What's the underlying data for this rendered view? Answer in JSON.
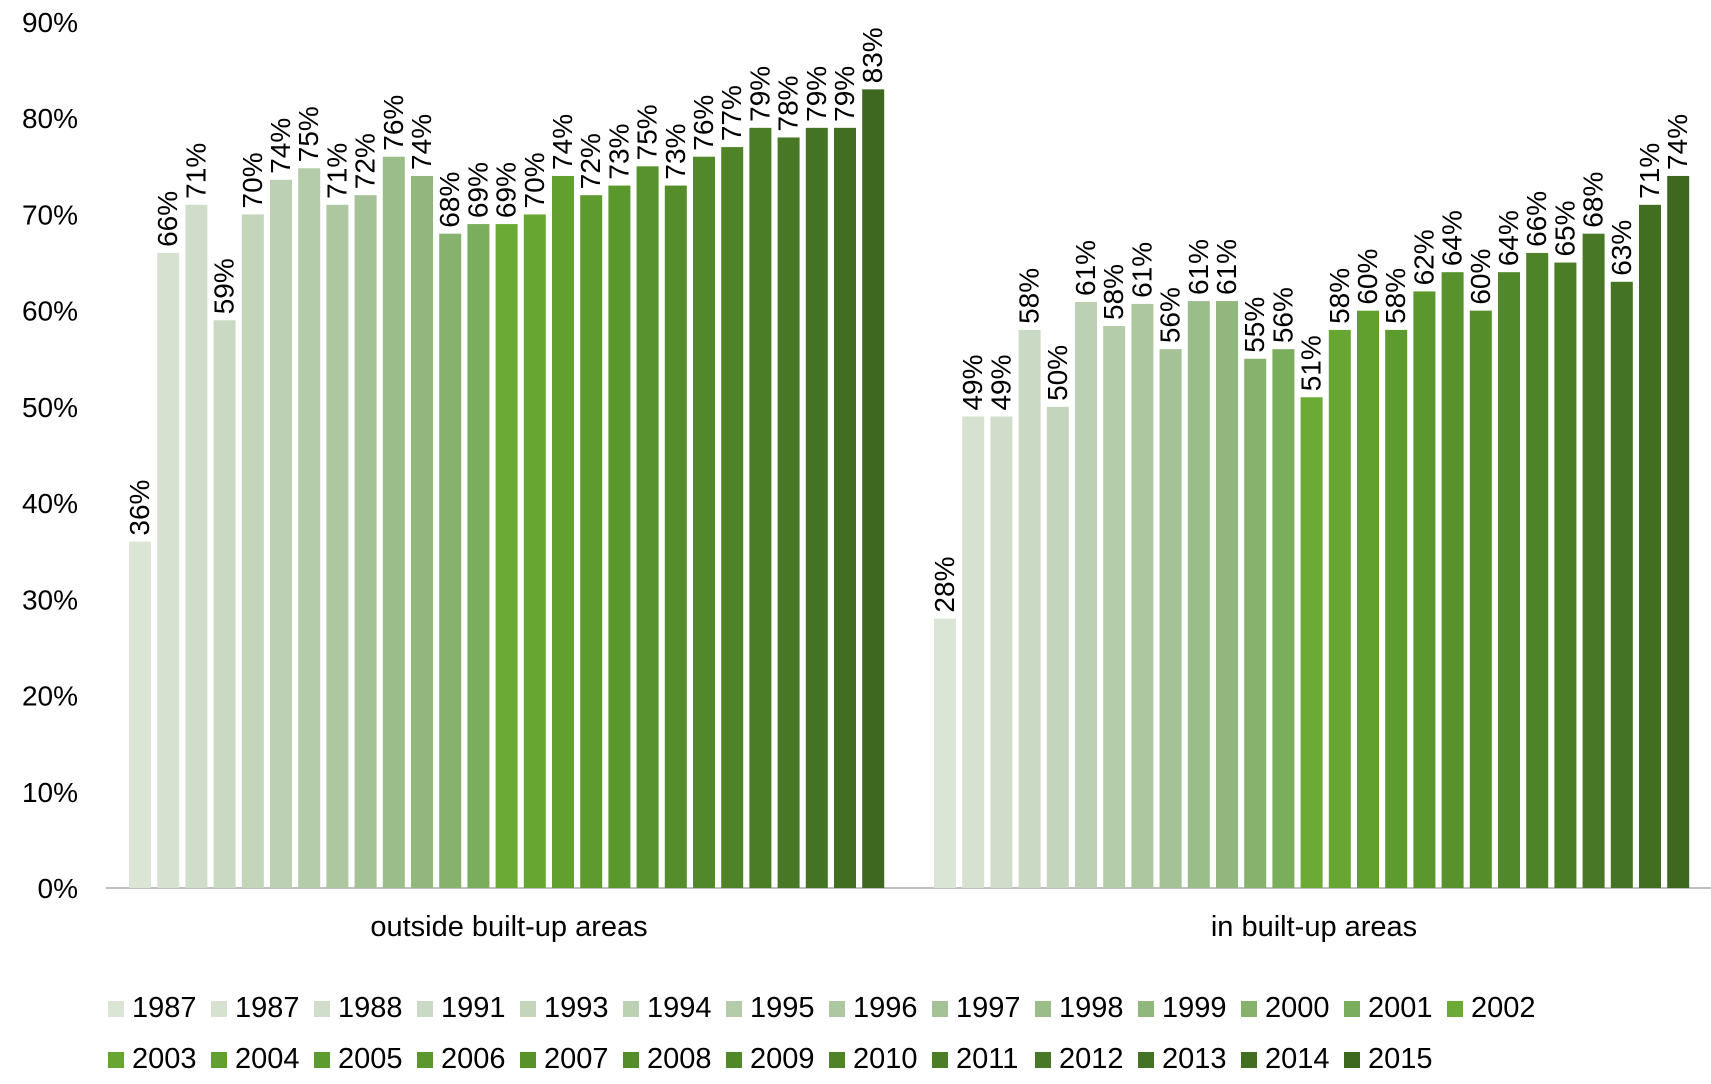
{
  "chart_data": {
    "type": "bar",
    "title": "",
    "xlabel": "",
    "ylabel": "",
    "ylim": [
      0,
      90
    ],
    "y_ticks": [
      "0%",
      "10%",
      "20%",
      "30%",
      "40%",
      "50%",
      "60%",
      "70%",
      "80%",
      "90%"
    ],
    "grid": false,
    "legend_position": "bottom",
    "categories": [
      "outside built-up areas",
      "in built-up areas"
    ],
    "series": [
      {
        "name": "1987",
        "color": "#dbe5d6",
        "values": [
          36,
          28
        ],
        "labels": [
          "36%",
          "28%"
        ]
      },
      {
        "name": "1987",
        "color": "#d6e1d0",
        "values": [
          66,
          49
        ],
        "labels": [
          "66%",
          "49%"
        ]
      },
      {
        "name": "1988",
        "color": "#d0ddca",
        "values": [
          71,
          49
        ],
        "labels": [
          "71%",
          "49%"
        ]
      },
      {
        "name": "1991",
        "color": "#cad9c3",
        "values": [
          59,
          58
        ],
        "labels": [
          "59%",
          "58%"
        ]
      },
      {
        "name": "1993",
        "color": "#c3d5bb",
        "values": [
          70,
          50
        ],
        "labels": [
          "70%",
          "50%"
        ]
      },
      {
        "name": "1994",
        "color": "#bcd0b3",
        "values": [
          73.6,
          60.9
        ],
        "labels": [
          "74%",
          "61%"
        ]
      },
      {
        "name": "1995",
        "color": "#b5ccaa",
        "values": [
          74.8,
          58.4
        ],
        "labels": [
          "75%",
          "58%"
        ]
      },
      {
        "name": "1996",
        "color": "#adc7a0",
        "values": [
          71,
          60.7
        ],
        "labels": [
          "71%",
          "61%"
        ]
      },
      {
        "name": "1997",
        "color": "#a4c295",
        "values": [
          72,
          56
        ],
        "labels": [
          "72%",
          "56%"
        ]
      },
      {
        "name": "1998",
        "color": "#9bbd89",
        "values": [
          76,
          61
        ],
        "labels": [
          "76%",
          "61%"
        ]
      },
      {
        "name": "1999",
        "color": "#91b77c",
        "values": [
          74,
          61
        ],
        "labels": [
          "74%",
          "61%"
        ]
      },
      {
        "name": "2000",
        "color": "#86b26d",
        "values": [
          68,
          55
        ],
        "labels": [
          "68%",
          "55%"
        ]
      },
      {
        "name": "2001",
        "color": "#7aae5c",
        "values": [
          69,
          56
        ],
        "labels": [
          "69%",
          "56%"
        ]
      },
      {
        "name": "2002",
        "color": "#6bab35",
        "values": [
          69,
          51
        ],
        "labels": [
          "69%",
          "51%"
        ]
      },
      {
        "name": "2003",
        "color": "#66a631",
        "values": [
          70,
          58
        ],
        "labels": [
          "70%",
          "58%"
        ]
      },
      {
        "name": "2004",
        "color": "#61a02f",
        "values": [
          74,
          60
        ],
        "labels": [
          "74%",
          "60%"
        ]
      },
      {
        "name": "2005",
        "color": "#5d9b2e",
        "values": [
          72,
          58
        ],
        "labels": [
          "72%",
          "58%"
        ]
      },
      {
        "name": "2006",
        "color": "#5a972d",
        "values": [
          73,
          62
        ],
        "labels": [
          "73%",
          "62%"
        ]
      },
      {
        "name": "2007",
        "color": "#57922c",
        "values": [
          75,
          64
        ],
        "labels": [
          "75%",
          "64%"
        ]
      },
      {
        "name": "2008",
        "color": "#548d2a",
        "values": [
          73,
          60
        ],
        "labels": [
          "73%",
          "60%"
        ]
      },
      {
        "name": "2009",
        "color": "#518829",
        "values": [
          76,
          64
        ],
        "labels": [
          "76%",
          "64%"
        ]
      },
      {
        "name": "2010",
        "color": "#4e8328",
        "values": [
          77,
          66
        ],
        "labels": [
          "77%",
          "66%"
        ]
      },
      {
        "name": "2011",
        "color": "#4b7d26",
        "values": [
          79,
          65
        ],
        "labels": [
          "79%",
          "65%"
        ]
      },
      {
        "name": "2012",
        "color": "#487825",
        "values": [
          78,
          68
        ],
        "labels": [
          "78%",
          "68%"
        ]
      },
      {
        "name": "2013",
        "color": "#457324",
        "values": [
          79,
          63
        ],
        "labels": [
          "79%",
          "63%"
        ]
      },
      {
        "name": "2014",
        "color": "#426e22",
        "values": [
          79,
          71
        ],
        "labels": [
          "79%",
          "71%"
        ]
      },
      {
        "name": "2015",
        "color": "#3e6820",
        "values": [
          83,
          74
        ],
        "labels": [
          "83%",
          "74%"
        ]
      }
    ]
  }
}
